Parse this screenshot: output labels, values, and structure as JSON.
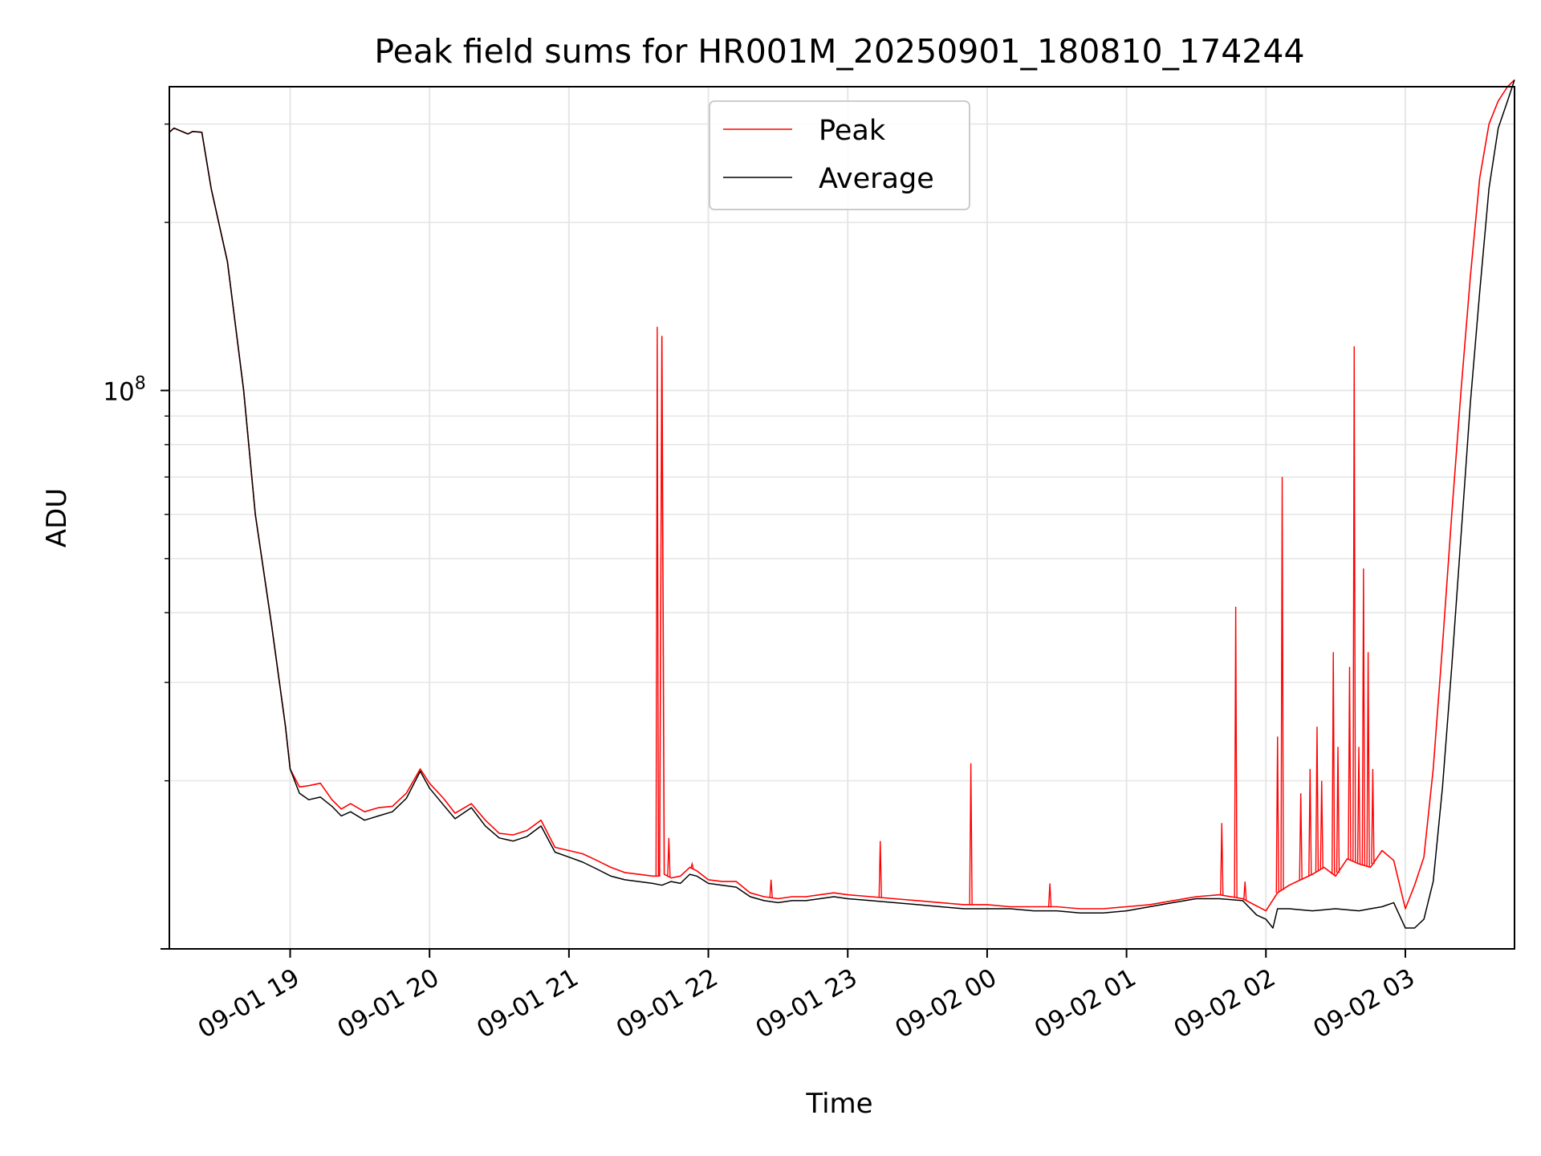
{
  "chart_data": {
    "type": "line",
    "title": "Peak field sums for HR001M_20250901_180810_174244",
    "xlabel": "Time",
    "ylabel": "ADU",
    "y_scale": "log",
    "ylim": [
      10000000,
      350000000
    ],
    "xlim": [
      "09-01 18:08",
      "09-02 03:47"
    ],
    "grid": true,
    "legend_position": "top-center",
    "x_tick_labels": [
      "09-01 19",
      "09-01 20",
      "09-01 21",
      "09-01 22",
      "09-01 23",
      "09-02 00",
      "09-02 01",
      "09-02 02",
      "09-02 03"
    ],
    "y_tick_labels": [
      {
        "base": "10",
        "exp": "8"
      }
    ],
    "colors": {
      "peak": "#ff0000",
      "average": "#000000"
    },
    "series": [
      {
        "name": "Peak",
        "color": "#ff0000",
        "x": [
          "09-01 18:08",
          "09-01 18:10",
          "09-01 18:16",
          "09-01 18:18",
          "09-01 18:22",
          "09-01 18:26",
          "09-01 18:33",
          "09-01 18:40",
          "09-01 18:45",
          "09-01 18:52",
          "09-01 18:58",
          "09-01 19:00",
          "09-01 19:04",
          "09-01 19:08",
          "09-01 19:13",
          "09-01 19:18",
          "09-01 19:22",
          "09-01 19:26",
          "09-01 19:32",
          "09-01 19:38",
          "09-01 19:44",
          "09-01 19:50",
          "09-01 19:56",
          "09-01 20:00",
          "09-01 20:06",
          "09-01 20:11",
          "09-01 20:18",
          "09-01 20:24",
          "09-01 20:30",
          "09-01 20:36",
          "09-01 20:42",
          "09-01 20:48",
          "09-01 20:54",
          "09-01 21:00",
          "09-01 21:06",
          "09-01 21:12",
          "09-01 21:18",
          "09-01 21:24",
          "09-01 21:30",
          "09-01 21:36",
          "09-01 21:39",
          "09-01 21:40",
          "09-01 21:41",
          "09-01 21:44",
          "09-01 21:48",
          "09-01 21:52",
          "09-01 21:55",
          "09-01 22:00",
          "09-01 22:06",
          "09-01 22:12",
          "09-01 22:18",
          "09-01 22:24",
          "09-01 22:30",
          "09-01 22:36",
          "09-01 22:42",
          "09-01 22:48",
          "09-01 22:54",
          "09-01 23:00",
          "09-01 23:10",
          "09-01 23:20",
          "09-01 23:30",
          "09-01 23:40",
          "09-01 23:50",
          "09-02 00:00",
          "09-02 00:10",
          "09-02 00:20",
          "09-02 00:30",
          "09-02 00:40",
          "09-02 00:50",
          "09-02 01:00",
          "09-02 01:10",
          "09-02 01:20",
          "09-02 01:30",
          "09-02 01:40",
          "09-02 01:50",
          "09-02 02:00",
          "09-02 02:05",
          "09-02 02:10",
          "09-02 02:15",
          "09-02 02:20",
          "09-02 02:25",
          "09-02 02:30",
          "09-02 02:35",
          "09-02 02:40",
          "09-02 02:45",
          "09-02 02:50",
          "09-02 02:55",
          "09-02 03:00",
          "09-02 03:04",
          "09-02 03:08",
          "09-02 03:12",
          "09-02 03:16",
          "09-02 03:20",
          "09-02 03:24",
          "09-02 03:28",
          "09-02 03:32",
          "09-02 03:36",
          "09-02 03:40",
          "09-02 03:44",
          "09-02 03:47"
        ],
        "y": [
          290000000,
          295000000,
          288000000,
          291000000,
          290000000,
          230000000,
          170000000,
          100000000,
          60000000,
          38000000,
          25000000,
          21000000,
          19500000,
          19600000,
          19800000,
          18500000,
          17800000,
          18200000,
          17600000,
          17900000,
          18000000,
          19000000,
          21000000,
          19800000,
          18600000,
          17500000,
          18200000,
          17000000,
          16100000,
          16000000,
          16300000,
          17000000,
          15200000,
          15000000,
          14800000,
          14400000,
          14000000,
          13700000,
          13600000,
          13500000,
          13500000,
          125000000,
          13600000,
          13400000,
          13500000,
          14000000,
          13800000,
          13300000,
          13200000,
          13200000,
          12600000,
          12400000,
          12300000,
          12400000,
          12400000,
          12500000,
          12600000,
          12500000,
          12400000,
          12300000,
          12200000,
          12100000,
          12000000,
          12000000,
          11900000,
          11900000,
          11900000,
          11800000,
          11800000,
          11900000,
          12000000,
          12200000,
          12400000,
          12500000,
          12300000,
          11700000,
          12600000,
          13000000,
          13300000,
          13600000,
          14000000,
          13500000,
          14500000,
          14200000,
          14000000,
          15000000,
          14400000,
          11800000,
          13000000,
          14600000,
          21000000,
          35000000,
          60000000,
          100000000,
          160000000,
          240000000,
          300000000,
          330000000,
          350000000,
          360000000
        ],
        "spikes": [
          {
            "x": "09-01 21:38",
            "y": 130000000
          },
          {
            "x": "09-01 21:43",
            "y": 15800000
          },
          {
            "x": "09-01 21:53",
            "y": 14200000
          },
          {
            "x": "09-01 22:27",
            "y": 13300000
          },
          {
            "x": "09-01 23:14",
            "y": 15600000
          },
          {
            "x": "09-01 23:53",
            "y": 21500000
          },
          {
            "x": "09-02 00:27",
            "y": 13100000
          },
          {
            "x": "09-02 01:41",
            "y": 16800000
          },
          {
            "x": "09-02 01:47",
            "y": 41000000
          },
          {
            "x": "09-02 01:51",
            "y": 13200000
          },
          {
            "x": "09-02 02:05",
            "y": 24000000
          },
          {
            "x": "09-02 02:07",
            "y": 70000000
          },
          {
            "x": "09-02 02:15",
            "y": 19000000
          },
          {
            "x": "09-02 02:19",
            "y": 21000000
          },
          {
            "x": "09-02 02:22",
            "y": 25000000
          },
          {
            "x": "09-02 02:24",
            "y": 20000000
          },
          {
            "x": "09-02 02:29",
            "y": 34000000
          },
          {
            "x": "09-02 02:31",
            "y": 23000000
          },
          {
            "x": "09-02 02:36",
            "y": 32000000
          },
          {
            "x": "09-02 02:38",
            "y": 120000000
          },
          {
            "x": "09-02 02:40",
            "y": 23000000
          },
          {
            "x": "09-02 02:42",
            "y": 48000000
          },
          {
            "x": "09-02 02:44",
            "y": 34000000
          },
          {
            "x": "09-02 02:46",
            "y": 21000000
          }
        ]
      },
      {
        "name": "Average",
        "color": "#000000",
        "x": [
          "09-01 18:08",
          "09-01 18:10",
          "09-01 18:16",
          "09-01 18:18",
          "09-01 18:22",
          "09-01 18:26",
          "09-01 18:33",
          "09-01 18:40",
          "09-01 18:45",
          "09-01 18:52",
          "09-01 18:58",
          "09-01 19:00",
          "09-01 19:04",
          "09-01 19:08",
          "09-01 19:13",
          "09-01 19:18",
          "09-01 19:22",
          "09-01 19:26",
          "09-01 19:32",
          "09-01 19:38",
          "09-01 19:44",
          "09-01 19:50",
          "09-01 19:56",
          "09-01 20:00",
          "09-01 20:06",
          "09-01 20:11",
          "09-01 20:18",
          "09-01 20:24",
          "09-01 20:30",
          "09-01 20:36",
          "09-01 20:42",
          "09-01 20:48",
          "09-01 20:54",
          "09-01 21:00",
          "09-01 21:06",
          "09-01 21:12",
          "09-01 21:18",
          "09-01 21:24",
          "09-01 21:30",
          "09-01 21:36",
          "09-01 21:40",
          "09-01 21:44",
          "09-01 21:48",
          "09-01 21:52",
          "09-01 21:55",
          "09-01 22:00",
          "09-01 22:06",
          "09-01 22:12",
          "09-01 22:18",
          "09-01 22:24",
          "09-01 22:30",
          "09-01 22:36",
          "09-01 22:42",
          "09-01 22:48",
          "09-01 22:54",
          "09-01 23:00",
          "09-01 23:10",
          "09-01 23:20",
          "09-01 23:30",
          "09-01 23:40",
          "09-01 23:50",
          "09-02 00:00",
          "09-02 00:10",
          "09-02 00:20",
          "09-02 00:30",
          "09-02 00:40",
          "09-02 00:50",
          "09-02 01:00",
          "09-02 01:10",
          "09-02 01:20",
          "09-02 01:30",
          "09-02 01:40",
          "09-02 01:50",
          "09-02 01:56",
          "09-02 02:00",
          "09-02 02:03",
          "09-02 02:05",
          "09-02 02:10",
          "09-02 02:20",
          "09-02 02:30",
          "09-02 02:40",
          "09-02 02:45",
          "09-02 02:50",
          "09-02 02:55",
          "09-02 03:00",
          "09-02 03:04",
          "09-02 03:08",
          "09-02 03:12",
          "09-02 03:16",
          "09-02 03:20",
          "09-02 03:24",
          "09-02 03:28",
          "09-02 03:32",
          "09-02 03:36",
          "09-02 03:40",
          "09-02 03:44",
          "09-02 03:47"
        ],
        "y": [
          290000000,
          295000000,
          288000000,
          291000000,
          290000000,
          230000000,
          170000000,
          100000000,
          60000000,
          38000000,
          25000000,
          21000000,
          19000000,
          18500000,
          18700000,
          18000000,
          17300000,
          17600000,
          17000000,
          17300000,
          17600000,
          18600000,
          20800000,
          19400000,
          18100000,
          17100000,
          17900000,
          16600000,
          15800000,
          15600000,
          15900000,
          16600000,
          14900000,
          14600000,
          14300000,
          13900000,
          13500000,
          13300000,
          13200000,
          13100000,
          13000000,
          13200000,
          13100000,
          13600000,
          13500000,
          13100000,
          13000000,
          12900000,
          12400000,
          12200000,
          12100000,
          12200000,
          12200000,
          12300000,
          12400000,
          12300000,
          12200000,
          12100000,
          12000000,
          11900000,
          11800000,
          11800000,
          11800000,
          11700000,
          11700000,
          11600000,
          11600000,
          11700000,
          11900000,
          12100000,
          12300000,
          12300000,
          12200000,
          11500000,
          11300000,
          10900000,
          11800000,
          11800000,
          11700000,
          11800000,
          11700000,
          11800000,
          11900000,
          12100000,
          10900000,
          10900000,
          11300000,
          13200000,
          19500000,
          32000000,
          55000000,
          95000000,
          150000000,
          230000000,
          295000000,
          330000000,
          360000000
        ]
      }
    ]
  }
}
